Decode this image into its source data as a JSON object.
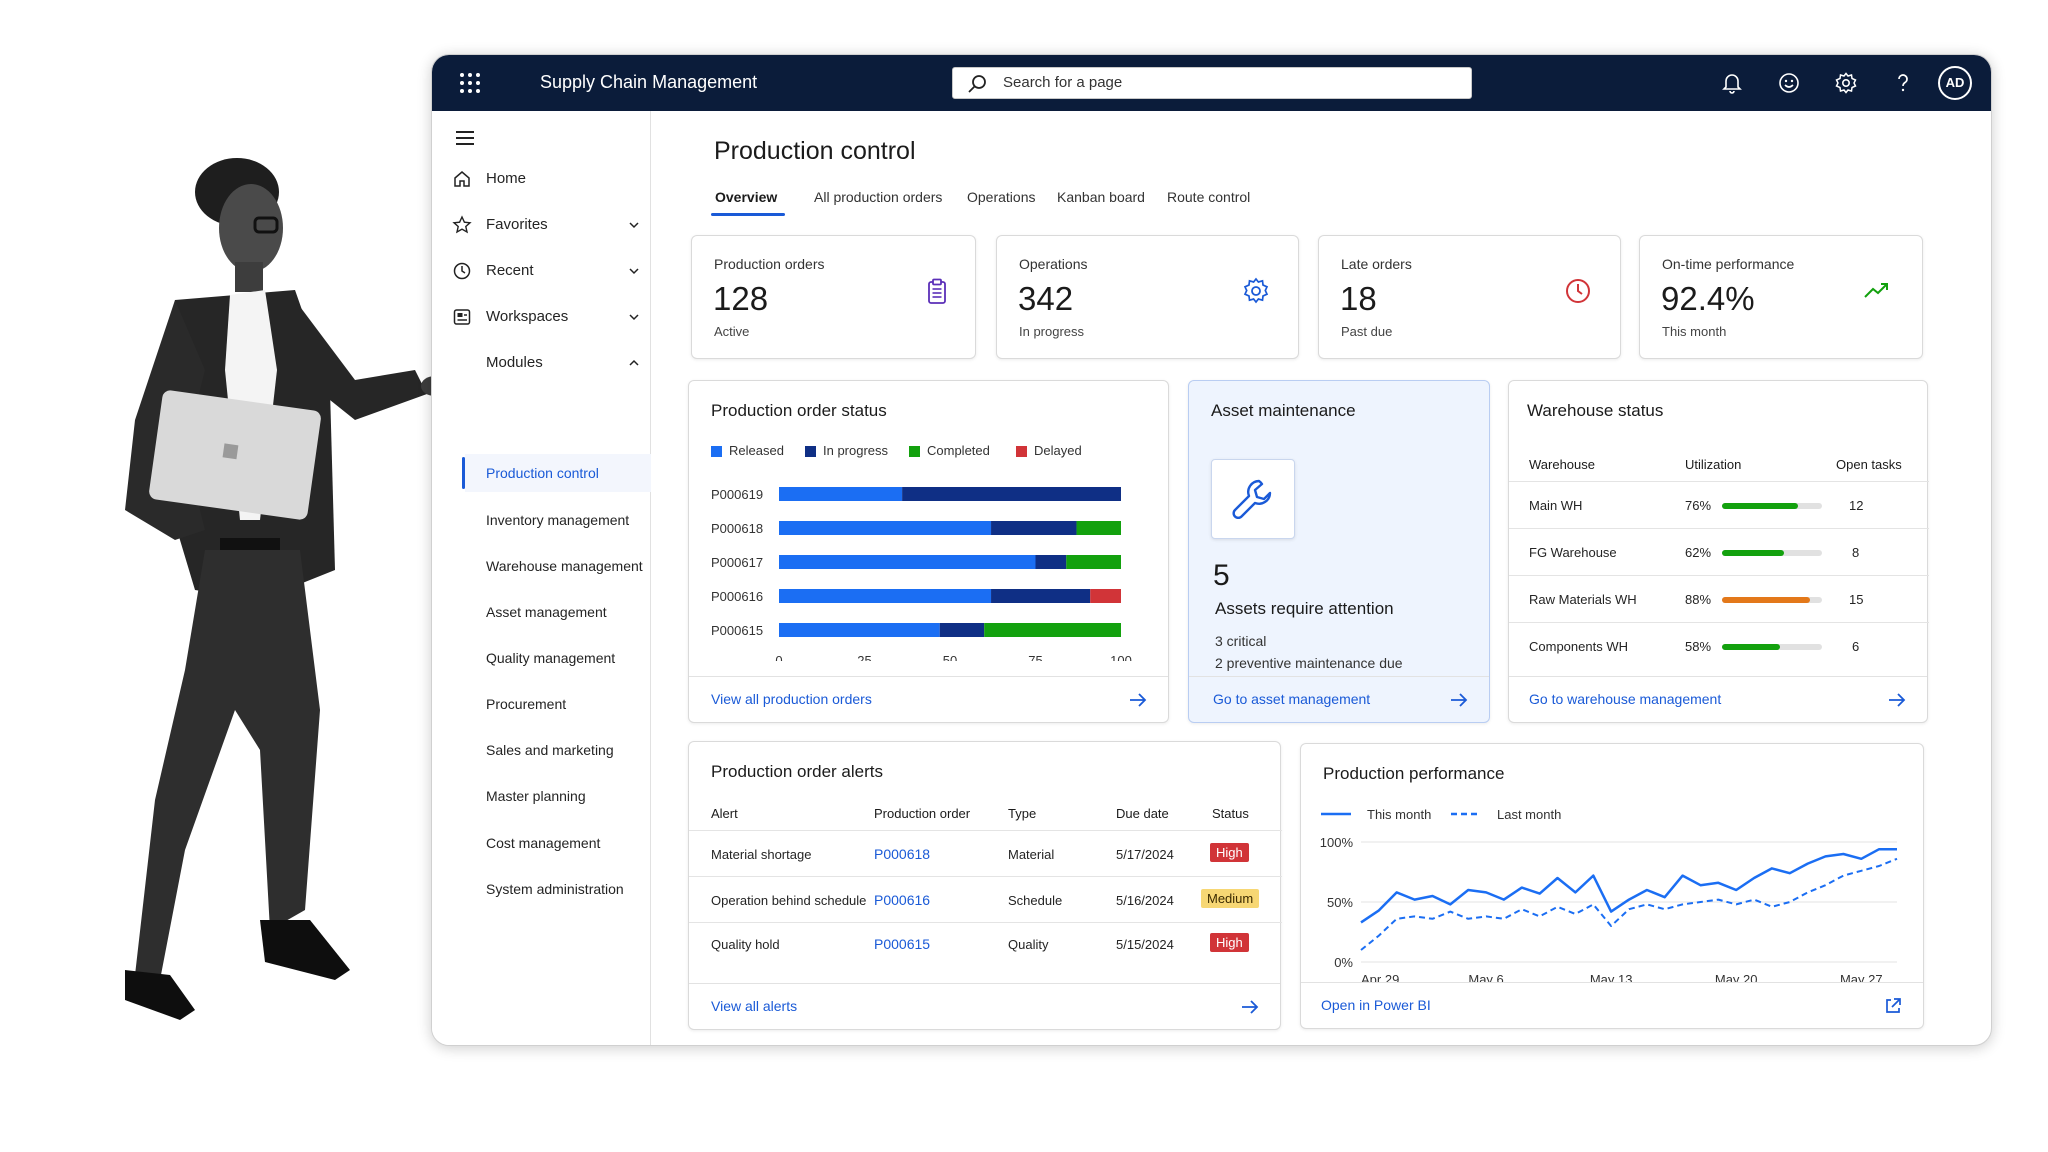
{
  "app": {
    "title": "Supply Chain Management",
    "search_placeholder": "Search for a page",
    "avatar_initials": "AD",
    "accent": "#1a5ad7",
    "topbar_color": "#0b1c3a"
  },
  "sidebar": {
    "items": [
      {
        "label": "Home",
        "icon": "home-icon"
      },
      {
        "label": "Favorites",
        "icon": "star-icon"
      },
      {
        "label": "Recent",
        "icon": "clock-icon"
      },
      {
        "label": "Workspaces",
        "icon": "workspaces-icon"
      },
      {
        "label": "Modules",
        "icon": "modules-icon"
      }
    ],
    "modules": [
      "Production control",
      "Inventory management",
      "Warehouse management",
      "Asset management",
      "Quality management",
      "Procurement",
      "Sales and marketing",
      "Master planning",
      "Cost management",
      "System administration"
    ]
  },
  "page": {
    "title": "Production control",
    "tabs": [
      "Overview",
      "All production orders",
      "Operations",
      "Kanban board",
      "Route control"
    ]
  },
  "kpis": [
    {
      "label": "Production orders",
      "value": "128",
      "sub": "Active",
      "icon": "clipboard-icon",
      "color": "#5b2fb8"
    },
    {
      "label": "Operations",
      "value": "342",
      "sub": "In progress",
      "icon": "gear-icon",
      "color": "#1a5ad7"
    },
    {
      "label": "Late orders",
      "value": "18",
      "sub": "Past due",
      "icon": "clock-icon",
      "color": "#d13438"
    },
    {
      "label": "On-time performance",
      "value": "92.4%",
      "sub": "This month",
      "icon": "trend-up-icon",
      "color": "#13a10e"
    }
  ],
  "order_status": {
    "title": "Production order status",
    "footer": "View all production orders"
  },
  "asset": {
    "title": "Asset maintenance",
    "count": "5",
    "headline": "Assets require attention",
    "line1": "3 critical",
    "line2": "2 preventive maintenance due",
    "footer": "Go to asset management"
  },
  "warehouse": {
    "title": "Warehouse status",
    "headers": {
      "name": "Warehouse",
      "util": "Utilization",
      "tasks": "Open tasks"
    },
    "rows": [
      {
        "name": "Main WH",
        "util": "76%",
        "util_value": 0.76,
        "tasks": "12",
        "color": "#13a10e"
      },
      {
        "name": "FG Warehouse",
        "util": "62%",
        "util_value": 0.62,
        "tasks": "8",
        "color": "#13a10e"
      },
      {
        "name": "Raw Materials WH",
        "util": "88%",
        "util_value": 0.88,
        "tasks": "15",
        "color": "#e3781a"
      },
      {
        "name": "Components WH",
        "util": "58%",
        "util_value": 0.58,
        "tasks": "6",
        "color": "#13a10e"
      }
    ],
    "footer": "Go to warehouse management"
  },
  "alerts": {
    "title": "Production order alerts",
    "headers": {
      "alert": "Alert",
      "order": "Production order",
      "type": "Type",
      "due": "Due date",
      "status": "Status"
    },
    "rows": [
      {
        "alert": "Material shortage",
        "order": "P000618",
        "type": "Material",
        "due": "5/17/2024",
        "status": "High",
        "status_bg": "#d13438",
        "status_fg": "#ffffff"
      },
      {
        "alert": "Operation behind schedule",
        "order": "P000616",
        "type": "Schedule",
        "due": "5/16/2024",
        "status": "Medium",
        "status_bg": "#f7d774",
        "status_fg": "#3b2a00"
      },
      {
        "alert": "Quality hold",
        "order": "P000615",
        "type": "Quality",
        "due": "5/15/2024",
        "status": "High",
        "status_bg": "#d13438",
        "status_fg": "#ffffff"
      }
    ],
    "footer": "View all alerts"
  },
  "performance": {
    "title": "Production performance",
    "footer": "Open  in  Power BI"
  },
  "chart_data": [
    {
      "type": "bar",
      "orientation": "horizontal",
      "stacked": true,
      "title": "Production order status",
      "categories": [
        "P000619",
        "P000618",
        "P000617",
        "P000616",
        "P000615"
      ],
      "series": [
        {
          "name": "Released",
          "color": "#1b6ef3",
          "values": [
            36,
            62,
            75,
            62,
            47
          ]
        },
        {
          "name": "In progress",
          "color": "#0f2f85",
          "values": [
            64,
            25,
            9,
            29,
            13
          ]
        },
        {
          "name": "Completed",
          "color": "#13a10e",
          "values": [
            0,
            13,
            16,
            0,
            40
          ]
        },
        {
          "name": "Delayed",
          "color": "#d13438",
          "values": [
            0,
            0,
            0,
            9,
            0
          ]
        }
      ],
      "xlim": [
        0,
        100
      ],
      "xticks": [
        "0",
        "25",
        "50",
        "75",
        "100"
      ],
      "legend": "top"
    },
    {
      "type": "line",
      "title": "Production performance",
      "x": [
        "Apr 29",
        "Apr 30",
        "May 1",
        "May 2",
        "May 3",
        "May 4",
        "May 5",
        "May 6",
        "May 7",
        "May 8",
        "May 9",
        "May 10",
        "May 11",
        "May 12",
        "May 13",
        "May 14",
        "May 15",
        "May 16",
        "May 17",
        "May 18",
        "May 19",
        "May 20",
        "May 21",
        "May 22",
        "May 23",
        "May 24",
        "May 25",
        "May 26",
        "May 27",
        "May 28",
        "May 29"
      ],
      "xticks": [
        "Apr 29",
        "May 6",
        "May 13",
        "May 20",
        "May 27"
      ],
      "yticks": [
        "0%",
        "50%",
        "100%"
      ],
      "ylim": [
        0,
        100
      ],
      "series": [
        {
          "name": "This month",
          "style": "solid",
          "color": "#1b6ef3",
          "values": [
            33,
            43,
            58,
            52,
            55,
            48,
            60,
            58,
            52,
            62,
            57,
            70,
            58,
            72,
            42,
            52,
            60,
            54,
            72,
            64,
            66,
            60,
            70,
            78,
            74,
            82,
            88,
            90,
            86,
            94,
            94
          ]
        },
        {
          "name": "Last month",
          "style": "dashed",
          "color": "#1b6ef3",
          "values": [
            10,
            22,
            36,
            38,
            36,
            42,
            36,
            38,
            36,
            44,
            38,
            46,
            40,
            48,
            30,
            44,
            48,
            44,
            48,
            50,
            52,
            48,
            52,
            46,
            50,
            58,
            64,
            72,
            76,
            80,
            86
          ]
        }
      ],
      "legend": "top-left"
    }
  ]
}
